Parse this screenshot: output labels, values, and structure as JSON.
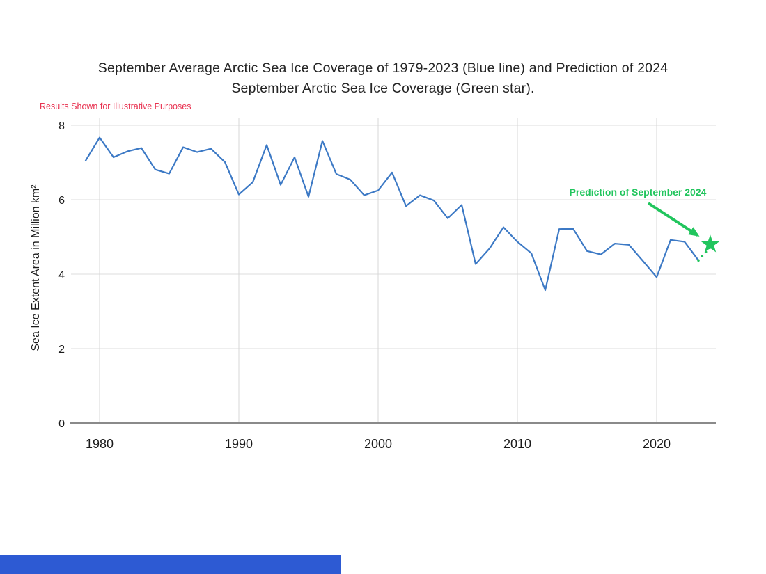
{
  "page": {
    "title_line1": "September Average Arctic Sea Ice Coverage of 1979-2023 (Blue line) and Prediction of 2024",
    "title_line2": "September Arctic Sea Ice Coverage (Green star).",
    "disclaimer": "Results Shown for Illustrative Purposes"
  },
  "colors": {
    "line-blue": "#3c79c5",
    "green": "#21c55d",
    "red": "#e8304f",
    "bar-blue": "#2d5ad3",
    "grid": "#dcdcdc",
    "axis": "#8a8a8a",
    "text": "#242424"
  },
  "chart_data": {
    "type": "line",
    "title": "September Average Arctic Sea Ice Coverage of 1979-2023 (Blue line) and Prediction of 2024 September Arctic Sea Ice Coverage (Green star).",
    "xlabel": "",
    "ylabel": "Sea Ice Extent Area in Million km²",
    "xlim": [
      1978,
      2025
    ],
    "ylim": [
      0,
      8
    ],
    "xticks": [
      1980,
      1990,
      2000,
      2010,
      2020
    ],
    "yticks": [
      0,
      2,
      4,
      6,
      8
    ],
    "grid": true,
    "legend_position": "none",
    "series": [
      {
        "name": "September Average Arctic Sea Ice Coverage 1979-2023",
        "color": "#3c79c5",
        "x": [
          1979,
          1980,
          1981,
          1982,
          1983,
          1984,
          1985,
          1986,
          1987,
          1988,
          1989,
          1990,
          1991,
          1992,
          1993,
          1994,
          1995,
          1996,
          1997,
          1998,
          1999,
          2000,
          2001,
          2002,
          2003,
          2004,
          2005,
          2006,
          2007,
          2008,
          2009,
          2010,
          2011,
          2012,
          2013,
          2014,
          2015,
          2016,
          2017,
          2018,
          2019,
          2020,
          2021,
          2022,
          2023
        ],
        "values": [
          7.05,
          7.67,
          7.14,
          7.3,
          7.39,
          6.81,
          6.7,
          7.41,
          7.28,
          7.37,
          7.01,
          6.14,
          6.47,
          7.47,
          6.4,
          7.14,
          6.08,
          7.58,
          6.69,
          6.54,
          6.12,
          6.25,
          6.73,
          5.83,
          6.12,
          5.98,
          5.5,
          5.86,
          4.27,
          4.69,
          5.26,
          4.87,
          4.56,
          3.57,
          5.21,
          5.22,
          4.62,
          4.53,
          4.82,
          4.79,
          4.36,
          3.92,
          4.92,
          4.87,
          4.37
        ]
      },
      {
        "name": "Prediction of September 2024",
        "color": "#21c55d",
        "marker": "star",
        "linestyle": "dotted",
        "x": [
          2024
        ],
        "values": [
          4.8
        ]
      }
    ],
    "annotation": {
      "text": "Prediction of September 2024",
      "color": "#21c55d"
    }
  }
}
